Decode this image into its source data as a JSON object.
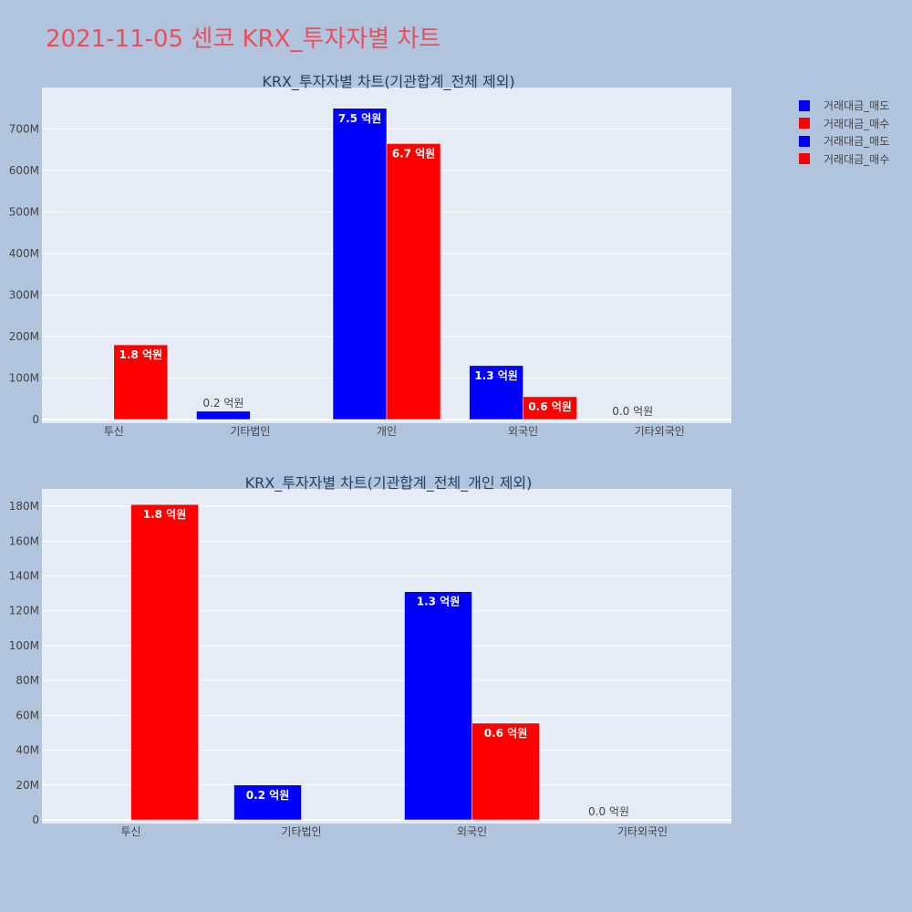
{
  "page_title": "2021-11-05 센코 KRX_투자자별 차트",
  "colors": {
    "sell": "#0000ff",
    "buy": "#ff0000",
    "plot_bg": "#e5ecf6",
    "page_bg": "#b0c4de"
  },
  "legend": [
    {
      "label": "거래대금_매도",
      "color": "#0000ff"
    },
    {
      "label": "거래대금_매수",
      "color": "#ff0000"
    },
    {
      "label": "거래대금_매도",
      "color": "#0000ff"
    },
    {
      "label": "거래대금_매수",
      "color": "#ff0000"
    }
  ],
  "chart_data": [
    {
      "type": "bar",
      "title": "KRX_투자자별 차트(기관합계_전체 제외)",
      "categories": [
        "투신",
        "기타법인",
        "개인",
        "외국인",
        "기타외국인"
      ],
      "ylim": [
        0,
        800000000
      ],
      "yticks": [
        0,
        100000000,
        200000000,
        300000000,
        400000000,
        500000000,
        600000000,
        700000000
      ],
      "ytick_labels": [
        "0",
        "100M",
        "200M",
        "300M",
        "400M",
        "500M",
        "600M",
        "700M"
      ],
      "series": [
        {
          "name": "거래대금_매도",
          "values": [
            null,
            20000000,
            750000000,
            130000000,
            0
          ],
          "labels": [
            "",
            "0.2 억원",
            "7.5 억원",
            "1.3 억원",
            "0.0 억원"
          ]
        },
        {
          "name": "거래대금_매수",
          "values": [
            180000000,
            null,
            665000000,
            55000000,
            null
          ],
          "labels": [
            "1.8 억원",
            "",
            "6.7 억원",
            "0.6 억원",
            ""
          ]
        }
      ],
      "grid": true
    },
    {
      "type": "bar",
      "title": "KRX_투자자별 차트(기관합계_전체_개인 제외)",
      "categories": [
        "투신",
        "기타법인",
        "외국인",
        "기타외국인"
      ],
      "ylim": [
        0,
        190000000
      ],
      "yticks": [
        0,
        20000000,
        40000000,
        60000000,
        80000000,
        100000000,
        120000000,
        140000000,
        160000000,
        180000000
      ],
      "ytick_labels": [
        "0",
        "20M",
        "40M",
        "60M",
        "80M",
        "100M",
        "120M",
        "140M",
        "160M",
        "180M"
      ],
      "series": [
        {
          "name": "거래대금_매도",
          "values": [
            null,
            20000000,
            131000000,
            0
          ],
          "labels": [
            "",
            "0.2 억원",
            "1.3 억원",
            "0.0 억원"
          ]
        },
        {
          "name": "거래대금_매수",
          "values": [
            181000000,
            null,
            55500000,
            null
          ],
          "labels": [
            "1.8 억원",
            "",
            "0.6 억원",
            ""
          ]
        }
      ],
      "grid": true
    }
  ]
}
